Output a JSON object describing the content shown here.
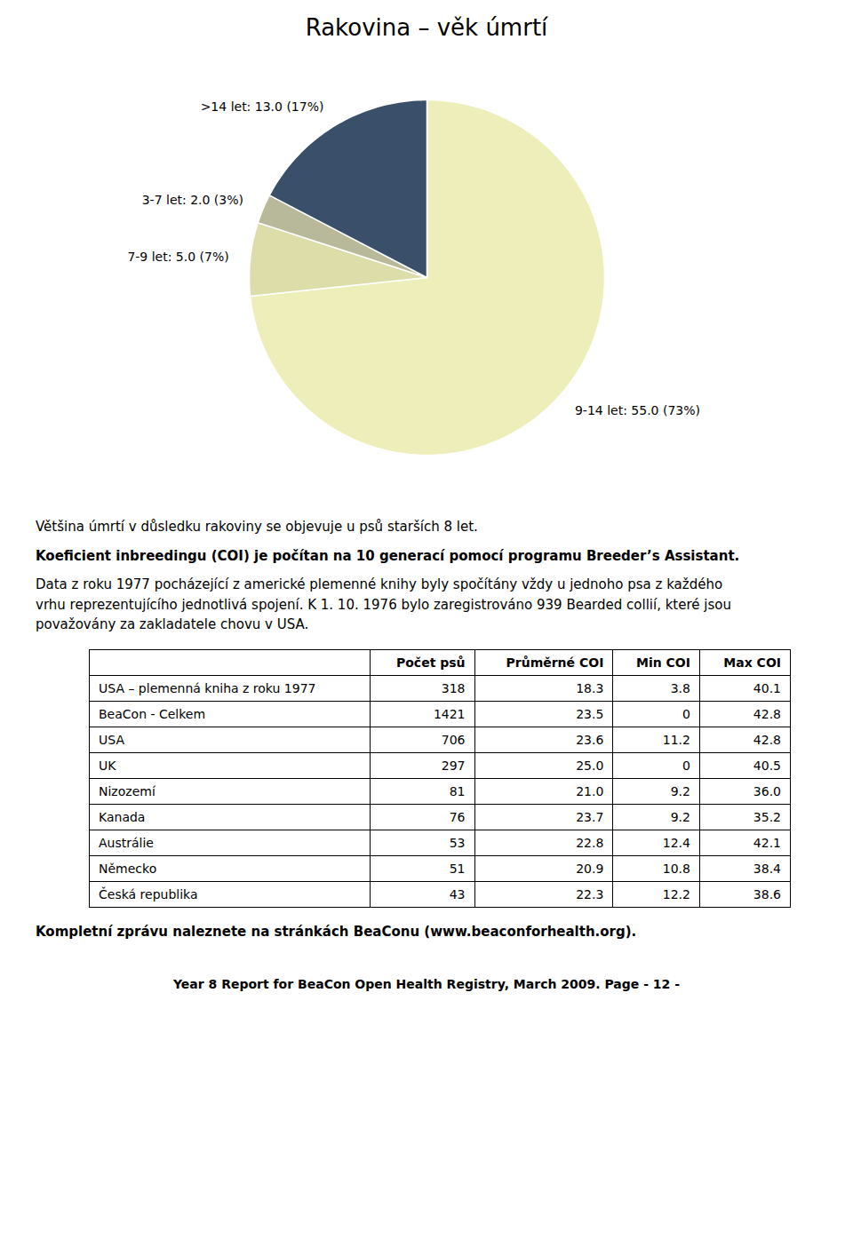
{
  "chart_data": {
    "type": "pie",
    "title": "Rakovina – věk úmrtí",
    "categories": [
      "9-14 let: 55.0 (73%)",
      "7-9 let: 5.0 (7%)",
      "3-7 let: 2.0 (3%)",
      ">14 let: 13.0 (17%)"
    ],
    "values": [
      55.0,
      5.0,
      2.0,
      13.0
    ],
    "colors": [
      "#EEEEBB",
      "#DDDDAA",
      "#B8B89A",
      "#3A506A"
    ],
    "annotations": [
      "Většina úmrtí v důsledku rakoviny se objevuje u psů starších 8 let.",
      "Koeficient inbreedingu (COI) je počítan na 10 generací pomocí programu Breeder’s Assistant.",
      "Data z roku 1977 pocházející z americké plemenné knihy byly spočítány vždy u jednoho psa z každého\nvrhu reprezentujícího jednotlivá spojení.  K 1. 10. 1976 bylo zaregistrováno 939 Bearded collií, které jsou\npovažovány za zakladatele chovu v USA."
    ],
    "table": {
      "headers": [
        "",
        "Počet psů",
        "Průměrné COI",
        "Min COI",
        "Max COI"
      ],
      "rows": [
        [
          "USA – plemenná kniha z roku 1977",
          "318",
          "18.3",
          "3.8",
          "40.1"
        ],
        [
          "BeaCon - Celkem",
          "1421",
          "23.5",
          "0",
          "42.8"
        ],
        [
          "USA",
          "706",
          "23.6",
          "11.2",
          "42.8"
        ],
        [
          "UK",
          "297",
          "25.0",
          "0",
          "40.5"
        ],
        [
          "Nizozemí",
          "81",
          "21.0",
          "9.2",
          "36.0"
        ],
        [
          "Kanada",
          "76",
          "23.7",
          "9.2",
          "35.2"
        ],
        [
          "Austrálie",
          "53",
          "22.8",
          "12.4",
          "42.1"
        ],
        [
          "Německo",
          "51",
          "20.9",
          "10.8",
          "38.4"
        ],
        [
          "Česká republika",
          "43",
          "22.3",
          "12.2",
          "38.6"
        ]
      ]
    },
    "note": "Kompletní zprávu naleznete na stránkách BeaConu (www.beaconforhealth.org).",
    "footer": "Year 8 Report for BeaCon Open Health Registry, March 2009.  Page - 12 -"
  }
}
